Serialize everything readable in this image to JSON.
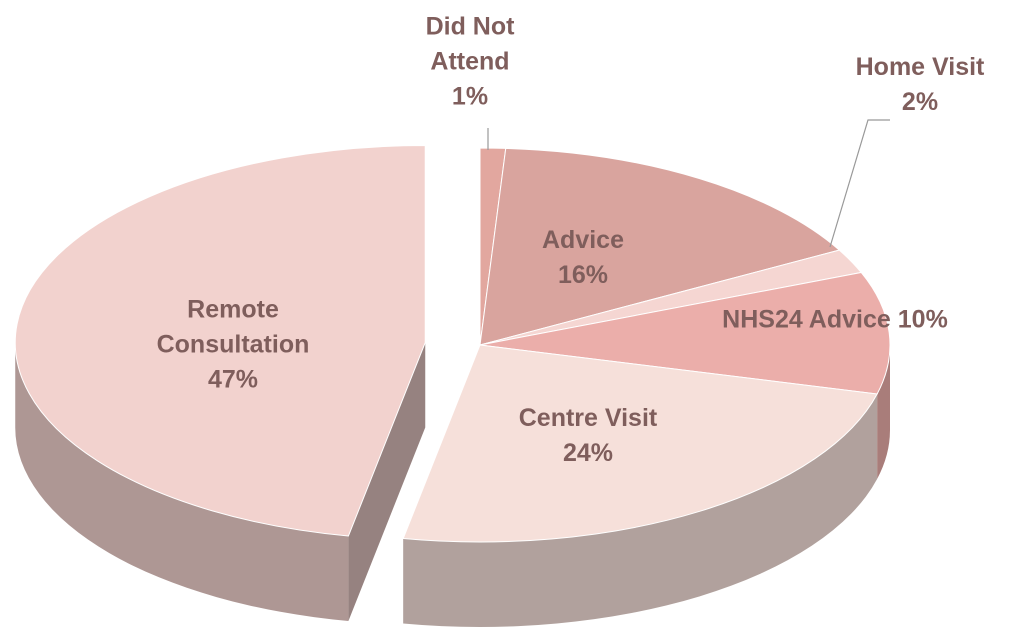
{
  "chart_data": {
    "type": "pie",
    "categories": [
      "Did Not Attend",
      "Advice",
      "Home Visit",
      "NHS24 Advice",
      "Centre Visit",
      "Remote Consultation"
    ],
    "values": [
      1,
      16,
      2,
      10,
      24,
      47
    ],
    "value_labels": [
      "1%",
      "16%",
      "2%",
      "10%",
      "24%",
      "47%"
    ],
    "colors": [
      "#e2a79f",
      "#d9a49e",
      "#f5d6d2",
      "#ebaeaa",
      "#f6e0da",
      "#f2d2ce"
    ]
  }
}
